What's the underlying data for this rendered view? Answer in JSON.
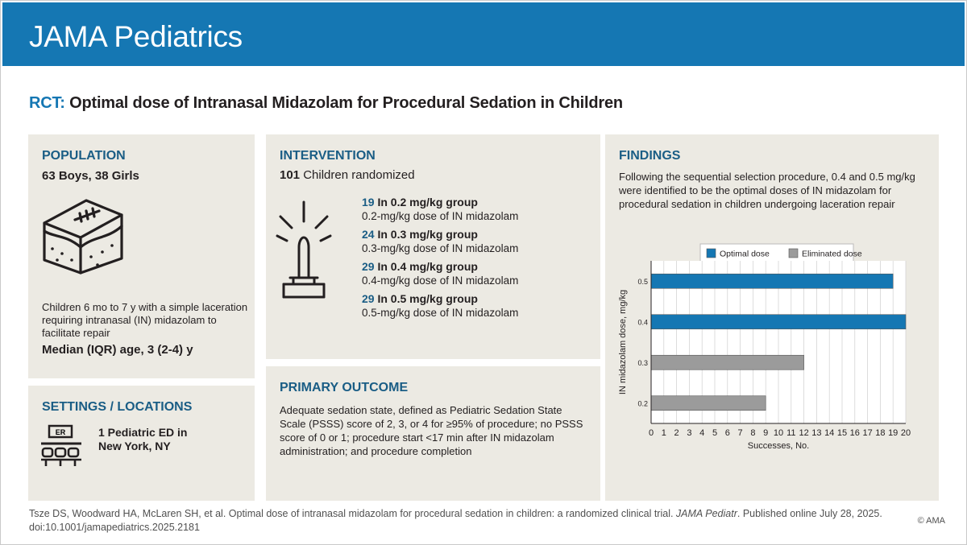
{
  "header": {
    "brand": "JAMA Pediatrics"
  },
  "title": {
    "prefix": "RCT:",
    "text": "Optimal dose of  Intranasal Midazolam for Procedural Sedation in Children"
  },
  "population": {
    "title": "POPULATION",
    "counts": "63 Boys, 38 Girls",
    "description": "Children 6 mo to 7 y with a simple laceration requiring intranasal (IN) midazolam to facilitate repair",
    "age": "Median (IQR) age, 3 (2-4) y"
  },
  "settings": {
    "title": "SETTINGS / LOCATIONS",
    "badge": "ER",
    "location_line1": "1 Pediatric ED in",
    "location_line2": "New York, NY"
  },
  "intervention": {
    "title": "INTERVENTION",
    "randomized_count": "101",
    "randomized_label": "Children randomized",
    "groups": [
      {
        "count": "19",
        "label": "In 0.2 mg/kg group",
        "desc": "0.2-mg/kg dose of IN midazolam"
      },
      {
        "count": "24",
        "label": "In 0.3 mg/kg group",
        "desc": "0.3-mg/kg dose of IN midazolam"
      },
      {
        "count": "29",
        "label": "In 0.4 mg/kg group",
        "desc": "0.4-mg/kg dose of IN midazolam"
      },
      {
        "count": "29",
        "label": "In 0.5 mg/kg group",
        "desc": "0.5-mg/kg dose of IN midazolam"
      }
    ]
  },
  "outcome": {
    "title": "PRIMARY OUTCOME",
    "text": "Adequate sedation state, defined as Pediatric Sedation State Scale (PSSS) score of 2, 3, or 4 for ≥95% of procedure; no PSSS score of 0 or 1; procedure start <17 min after IN midazolam administration; and procedure completion"
  },
  "findings": {
    "title": "FINDINGS",
    "text": "Following the sequential selection procedure, 0.4 and 0.5 mg/kg were identified to be the optimal doses of IN midazolam for procedural sedation in children undergoing laceration repair"
  },
  "chart_data": {
    "type": "bar",
    "orientation": "horizontal",
    "categories": [
      "0.5",
      "0.4",
      "0.3",
      "0.2"
    ],
    "values": [
      19,
      20,
      12,
      9
    ],
    "series_by_category": [
      "Optimal dose",
      "Optimal dose",
      "Eliminated dose",
      "Eliminated dose"
    ],
    "legend": [
      {
        "name": "Optimal dose",
        "color": "#1577b3"
      },
      {
        "name": "Eliminated dose",
        "color": "#9b9b9b"
      }
    ],
    "xlabel": "Successes, No.",
    "ylabel": "IN midazolam dose, mg/kg",
    "xlim": [
      0,
      20
    ],
    "xticks": [
      0,
      1,
      2,
      3,
      4,
      5,
      6,
      7,
      8,
      9,
      10,
      11,
      12,
      13,
      14,
      15,
      16,
      17,
      18,
      19,
      20
    ],
    "grid": true,
    "legend_position": "top"
  },
  "footer": {
    "citation_pre": "Tsze DS, Woodward HA, McLaren SH, et al. Optimal dose of intranasal midazolam for procedural sedation in children: a randomized clinical trial. ",
    "journal": "JAMA Pediatr",
    "citation_post": ". Published online July 28, 2025. doi:10.1001/jamapediatrics.2025.2181",
    "copyright": "© AMA"
  }
}
